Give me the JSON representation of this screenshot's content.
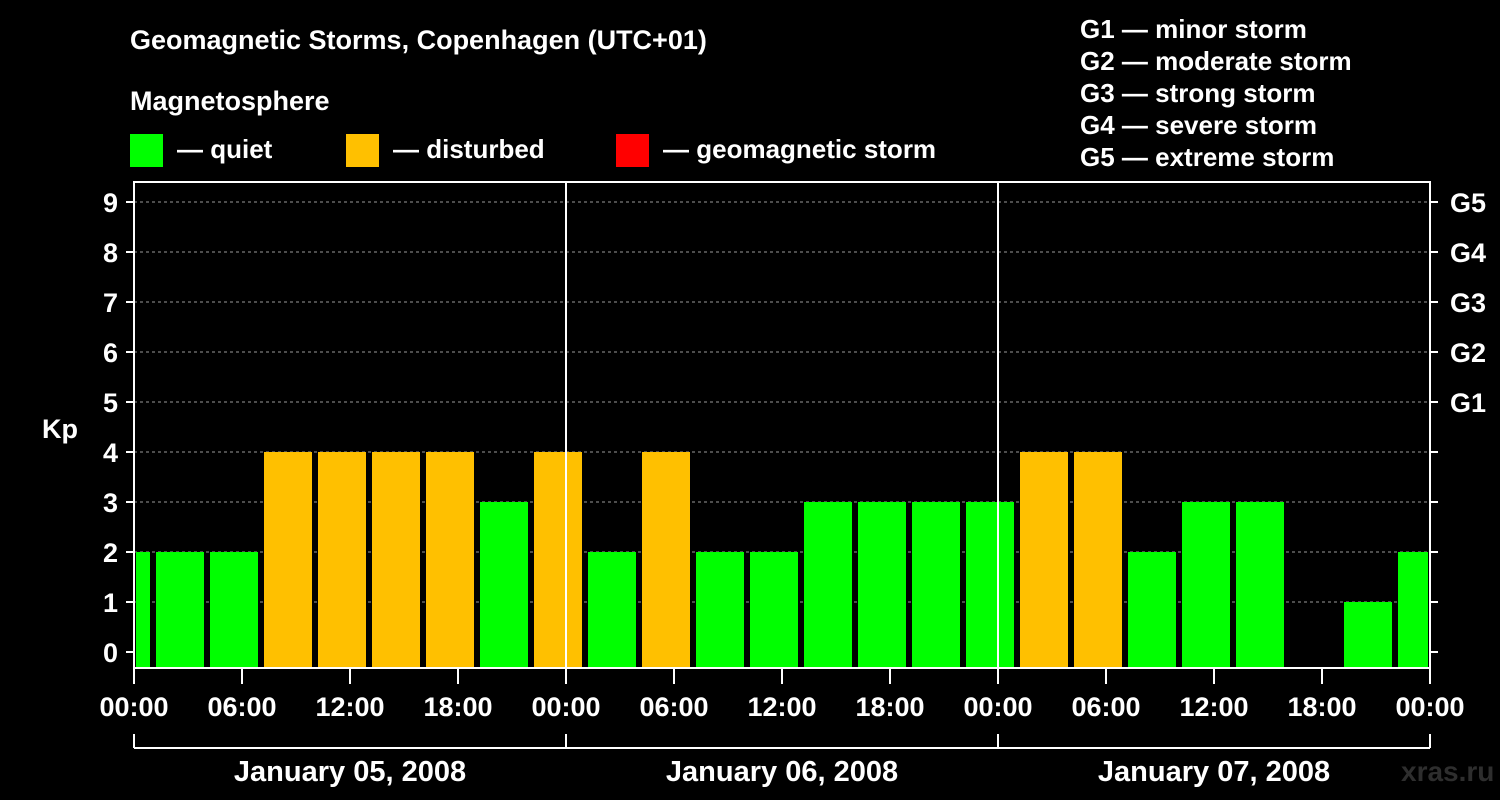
{
  "chart_data": {
    "type": "bar",
    "title": "Geomagnetic Storms, Copenhagen (UTC+01)",
    "legend_title": "Magnetosphere",
    "legend": [
      {
        "label": "— quiet",
        "color": "#00ff00"
      },
      {
        "label": "— disturbed",
        "color": "#ffc000"
      },
      {
        "label": "— geomagnetic storm",
        "color": "#ff0000"
      }
    ],
    "g_scale": [
      "G1 — minor storm",
      "G2 — moderate storm",
      "G3 — strong storm",
      "G4 — severe storm",
      "G5 — extreme storm"
    ],
    "ylabel": "Kp",
    "ylim": [
      0,
      9
    ],
    "yticks": [
      "0",
      "1",
      "2",
      "3",
      "4",
      "5",
      "6",
      "7",
      "8",
      "9"
    ],
    "right_ticks": [
      {
        "value": 5,
        "label": "G1"
      },
      {
        "value": 6,
        "label": "G2"
      },
      {
        "value": 7,
        "label": "G3"
      },
      {
        "value": 8,
        "label": "G4"
      },
      {
        "value": 9,
        "label": "G5"
      }
    ],
    "x_range_hours": [
      0,
      72
    ],
    "xticks": [
      "00:00",
      "06:00",
      "12:00",
      "18:00",
      "00:00",
      "06:00",
      "12:00",
      "18:00",
      "00:00",
      "06:00",
      "12:00",
      "18:00",
      "00:00"
    ],
    "dates": [
      "January 05, 2008",
      "January 06, 2008",
      "January 07, 2008"
    ],
    "bars": [
      {
        "start": 0,
        "end": 1,
        "kp": 2,
        "level": "quiet"
      },
      {
        "start": 1,
        "end": 4,
        "kp": 2,
        "level": "quiet"
      },
      {
        "start": 4,
        "end": 7,
        "kp": 2,
        "level": "quiet"
      },
      {
        "start": 7,
        "end": 10,
        "kp": 4,
        "level": "disturbed"
      },
      {
        "start": 10,
        "end": 13,
        "kp": 4,
        "level": "disturbed"
      },
      {
        "start": 13,
        "end": 16,
        "kp": 4,
        "level": "disturbed"
      },
      {
        "start": 16,
        "end": 19,
        "kp": 4,
        "level": "disturbed"
      },
      {
        "start": 19,
        "end": 22,
        "kp": 3,
        "level": "quiet"
      },
      {
        "start": 22,
        "end": 25,
        "kp": 4,
        "level": "disturbed"
      },
      {
        "start": 25,
        "end": 28,
        "kp": 2,
        "level": "quiet"
      },
      {
        "start": 28,
        "end": 31,
        "kp": 4,
        "level": "disturbed"
      },
      {
        "start": 31,
        "end": 34,
        "kp": 2,
        "level": "quiet"
      },
      {
        "start": 34,
        "end": 37,
        "kp": 2,
        "level": "quiet"
      },
      {
        "start": 37,
        "end": 40,
        "kp": 3,
        "level": "quiet"
      },
      {
        "start": 40,
        "end": 43,
        "kp": 3,
        "level": "quiet"
      },
      {
        "start": 43,
        "end": 46,
        "kp": 3,
        "level": "quiet"
      },
      {
        "start": 46,
        "end": 49,
        "kp": 3,
        "level": "quiet"
      },
      {
        "start": 49,
        "end": 52,
        "kp": 4,
        "level": "disturbed"
      },
      {
        "start": 52,
        "end": 55,
        "kp": 4,
        "level": "disturbed"
      },
      {
        "start": 55,
        "end": 58,
        "kp": 2,
        "level": "quiet"
      },
      {
        "start": 58,
        "end": 61,
        "kp": 3,
        "level": "quiet"
      },
      {
        "start": 61,
        "end": 64,
        "kp": 3,
        "level": "quiet"
      },
      {
        "start": 64,
        "end": 67,
        "kp": 0,
        "level": "quiet"
      },
      {
        "start": 67,
        "end": 70,
        "kp": 1,
        "level": "quiet"
      },
      {
        "start": 70,
        "end": 72,
        "kp": 2,
        "level": "quiet"
      }
    ],
    "colors": {
      "quiet": "#00ff00",
      "disturbed": "#ffc000",
      "storm": "#ff0000"
    }
  },
  "watermark": "xras.ru"
}
